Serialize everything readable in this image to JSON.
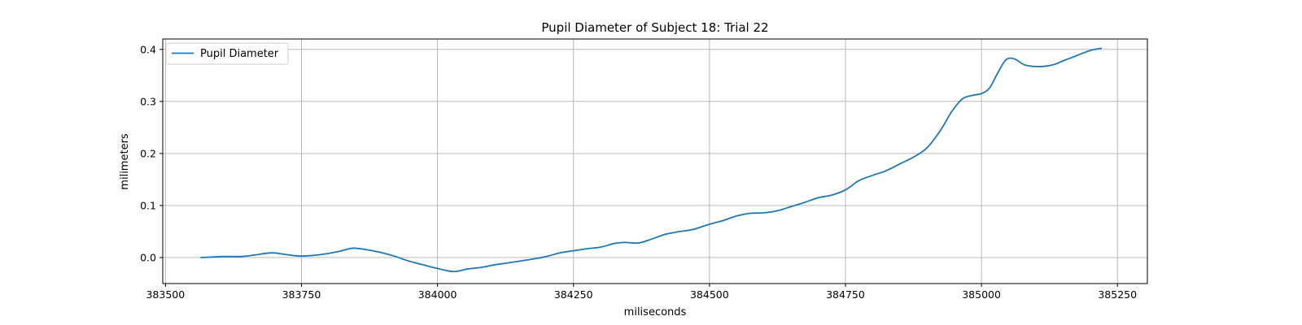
{
  "chart_data": {
    "type": "line",
    "title": "Pupil Diameter of Subject 18: Trial 22",
    "xlabel": "miliseconds",
    "ylabel": "milimeters",
    "xlim": [
      383495,
      385305
    ],
    "ylim": [
      -0.05,
      0.42
    ],
    "xticks": [
      383500,
      383750,
      384000,
      384250,
      384500,
      384750,
      385000,
      385250
    ],
    "xtick_labels": [
      "383500",
      "383750",
      "384000",
      "384250",
      "384500",
      "384750",
      "385000",
      "385250"
    ],
    "yticks": [
      0.0,
      0.1,
      0.2,
      0.3,
      0.4
    ],
    "ytick_labels": [
      "0.0",
      "0.1",
      "0.2",
      "0.3",
      "0.4"
    ],
    "grid": true,
    "legend_position": "top-left",
    "series": [
      {
        "name": "Pupil Diameter",
        "color": "#1f77b4",
        "x": [
          383565,
          383585,
          383610,
          383640,
          383665,
          383695,
          383720,
          383745,
          383770,
          383800,
          383820,
          383845,
          383870,
          383895,
          383920,
          383945,
          383970,
          384000,
          384030,
          384055,
          384080,
          384105,
          384125,
          384150,
          384175,
          384200,
          384225,
          384250,
          384275,
          384300,
          384325,
          384345,
          384370,
          384395,
          384420,
          384445,
          384470,
          384500,
          384525,
          384550,
          384575,
          384600,
          384625,
          384650,
          384675,
          384700,
          384725,
          384750,
          384775,
          384800,
          384825,
          384850,
          384875,
          384900,
          384925,
          384945,
          384965,
          384985,
          385000,
          385015,
          385030,
          385045,
          385060,
          385080,
          385105,
          385130,
          385150,
          385175,
          385200,
          385220
        ],
        "y": [
          0.0,
          0.001,
          0.002,
          0.002,
          0.005,
          0.009,
          0.006,
          0.003,
          0.004,
          0.008,
          0.012,
          0.018,
          0.015,
          0.01,
          0.003,
          -0.006,
          -0.013,
          -0.021,
          -0.027,
          -0.022,
          -0.019,
          -0.014,
          -0.011,
          -0.007,
          -0.003,
          0.002,
          0.009,
          0.013,
          0.017,
          0.02,
          0.027,
          0.029,
          0.028,
          0.036,
          0.045,
          0.05,
          0.054,
          0.064,
          0.071,
          0.08,
          0.085,
          0.086,
          0.09,
          0.098,
          0.106,
          0.115,
          0.12,
          0.13,
          0.148,
          0.158,
          0.167,
          0.18,
          0.193,
          0.211,
          0.245,
          0.28,
          0.305,
          0.312,
          0.315,
          0.326,
          0.355,
          0.38,
          0.382,
          0.37,
          0.367,
          0.37,
          0.378,
          0.388,
          0.398,
          0.402
        ]
      }
    ]
  }
}
